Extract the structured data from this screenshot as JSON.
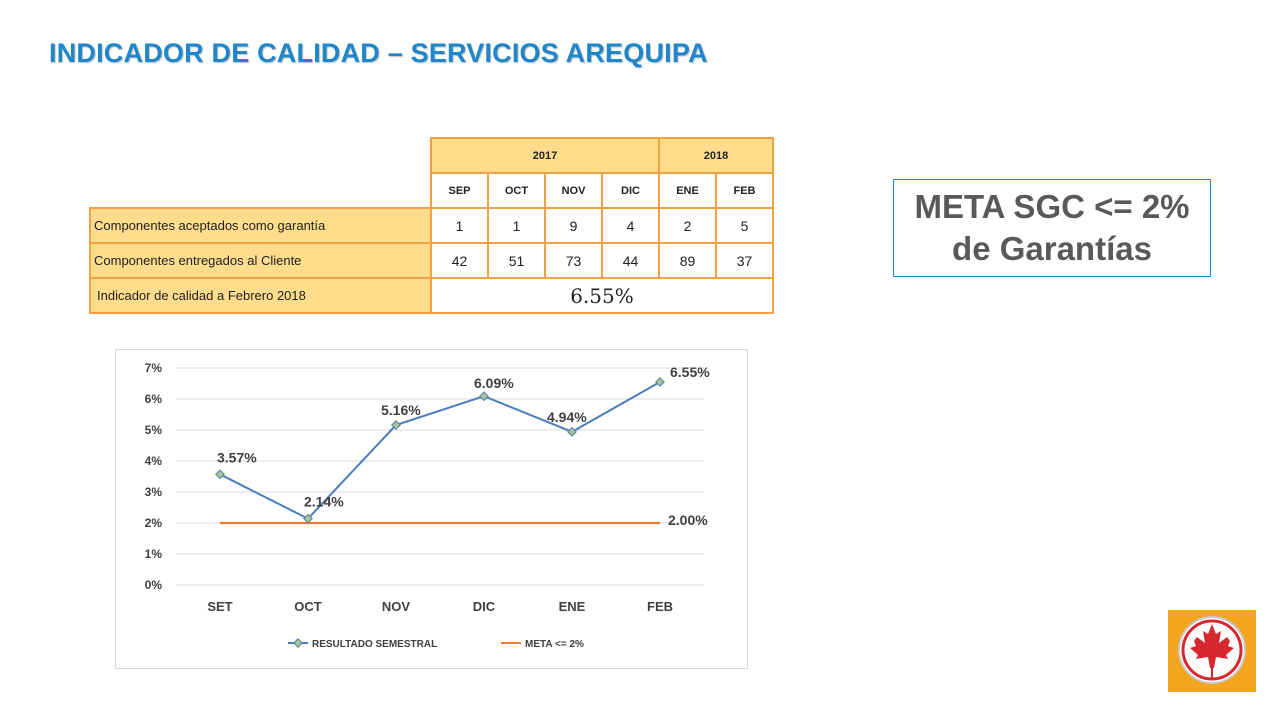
{
  "title": "INDICADOR DE CALIDAD – SERVICIOS AREQUIPA",
  "table": {
    "years": [
      "2017",
      "2018"
    ],
    "months": [
      "SEP",
      "OCT",
      "NOV",
      "DIC",
      "ENE",
      "FEB"
    ],
    "rows": [
      {
        "label": "Componentes aceptados como garantía",
        "values": [
          "1",
          "1",
          "9",
          "4",
          "2",
          "5"
        ]
      },
      {
        "label": "Componentes entregados al Cliente",
        "values": [
          "42",
          "51",
          "73",
          "44",
          "89",
          "37"
        ]
      }
    ],
    "indicator_label": "Indicador de calidad a Febrero 2018",
    "indicator_value": "6.55%"
  },
  "meta": {
    "line1": "META SGC <= 2%",
    "line2": "de Garantías"
  },
  "colors": {
    "title": "#1f87c9",
    "table_border": "#f5a043",
    "table_header_fill": "#fddc8c",
    "series_result": "#4a7ebb",
    "series_meta": "#ed7d31",
    "logo_bg": "#f3a51e",
    "logo_leaf": "#d7282f"
  },
  "chart_data": {
    "type": "line",
    "categories": [
      "SET",
      "OCT",
      "NOV",
      "DIC",
      "ENE",
      "FEB"
    ],
    "y_ticks": [
      "0%",
      "1%",
      "2%",
      "3%",
      "4%",
      "5%",
      "6%",
      "7%"
    ],
    "ylim": [
      0,
      7
    ],
    "grid": true,
    "legend_position": "bottom",
    "series": [
      {
        "name": "RESULTADO SEMESTRAL",
        "values": [
          3.57,
          2.14,
          5.16,
          6.09,
          4.94,
          6.55
        ],
        "labels": [
          "3.57%",
          "2.14%",
          "5.16%",
          "6.09%",
          "4.94%",
          "6.55%"
        ]
      },
      {
        "name": "META <= 2%",
        "values": [
          2,
          2,
          2,
          2,
          2,
          2
        ],
        "end_label": "2.00%"
      }
    ]
  }
}
